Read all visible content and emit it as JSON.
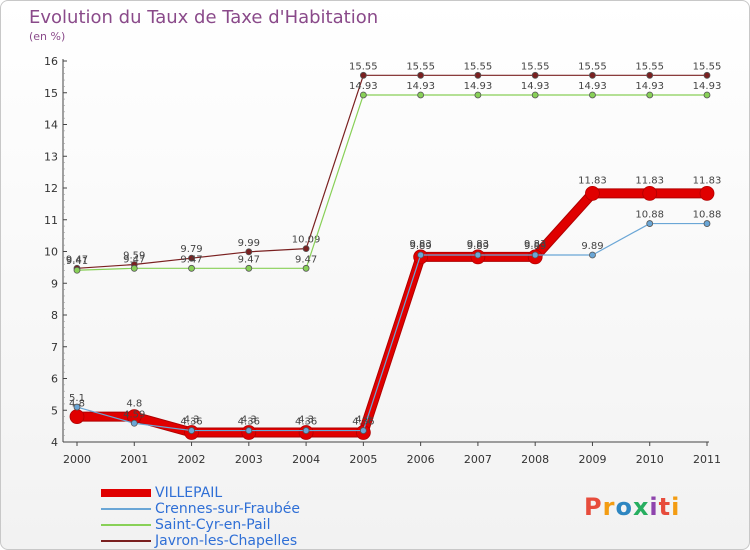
{
  "title": "Evolution du Taux de Taxe d'Habitation",
  "unit": "(en %)",
  "logo": "Proxiti",
  "chart_data": {
    "type": "line",
    "title": "Evolution du Taux de Taxe d'Habitation",
    "ylabel": "(en %)",
    "xlabel": "",
    "x": [
      "2000",
      "2001",
      "2002",
      "2003",
      "2004",
      "2005",
      "2006",
      "2007",
      "2008",
      "2009",
      "2010",
      "2011"
    ],
    "ylim": [
      4,
      16
    ],
    "yticks": [
      4,
      5,
      6,
      7,
      8,
      9,
      10,
      11,
      12,
      13,
      14,
      15,
      16
    ],
    "grid": false,
    "series": [
      {
        "name": "VILLEPAIL",
        "color": "#e00000",
        "width": 8,
        "marker": 7,
        "values": [
          4.8,
          4.8,
          4.3,
          4.3,
          4.3,
          4.3,
          9.83,
          9.83,
          9.83,
          11.83,
          11.83,
          11.83
        ],
        "labels": [
          "4.8",
          "4.8",
          "4.3",
          "4.3",
          "4.3",
          "4.3",
          "9.83",
          "9.83",
          "9.83",
          "11.83",
          "11.83",
          "11.83"
        ]
      },
      {
        "name": "Crennes-sur-Fraubée",
        "color": "#6aa6d6",
        "width": 1.2,
        "marker": 3,
        "values": [
          5.1,
          4.59,
          4.36,
          4.36,
          4.36,
          4.36,
          9.89,
          9.89,
          9.89,
          9.89,
          10.88,
          10.88
        ],
        "labels": [
          "5.1",
          "4.59",
          "4.36",
          "4.36",
          "4.36",
          "4.36",
          "9.89",
          "9.89",
          "9.89",
          "9.89",
          "10.88",
          "10.88"
        ]
      },
      {
        "name": "Saint-Cyr-en-Pail",
        "color": "#88d057",
        "width": 1.2,
        "marker": 3,
        "values": [
          9.41,
          9.47,
          9.47,
          9.47,
          9.47,
          14.93,
          14.93,
          14.93,
          14.93,
          14.93,
          14.93,
          14.93
        ],
        "labels": [
          "9.41",
          "9.47",
          "9.47",
          "9.47",
          "9.47",
          "14.93",
          "14.93",
          "14.93",
          "14.93",
          "14.93",
          "14.93",
          "14.93"
        ]
      },
      {
        "name": "Javron-les-Chapelles",
        "color": "#7a2020",
        "width": 1.2,
        "marker": 3,
        "values": [
          9.47,
          9.59,
          9.79,
          9.99,
          10.09,
          15.55,
          15.55,
          15.55,
          15.55,
          15.55,
          15.55,
          15.55
        ],
        "labels": [
          "9.47",
          "9.59",
          "9.79",
          "9.99",
          "10.09",
          "15.55",
          "15.55",
          "15.55",
          "15.55",
          "15.55",
          "15.55",
          "15.55"
        ]
      }
    ],
    "legend_position": "bottom-left"
  }
}
